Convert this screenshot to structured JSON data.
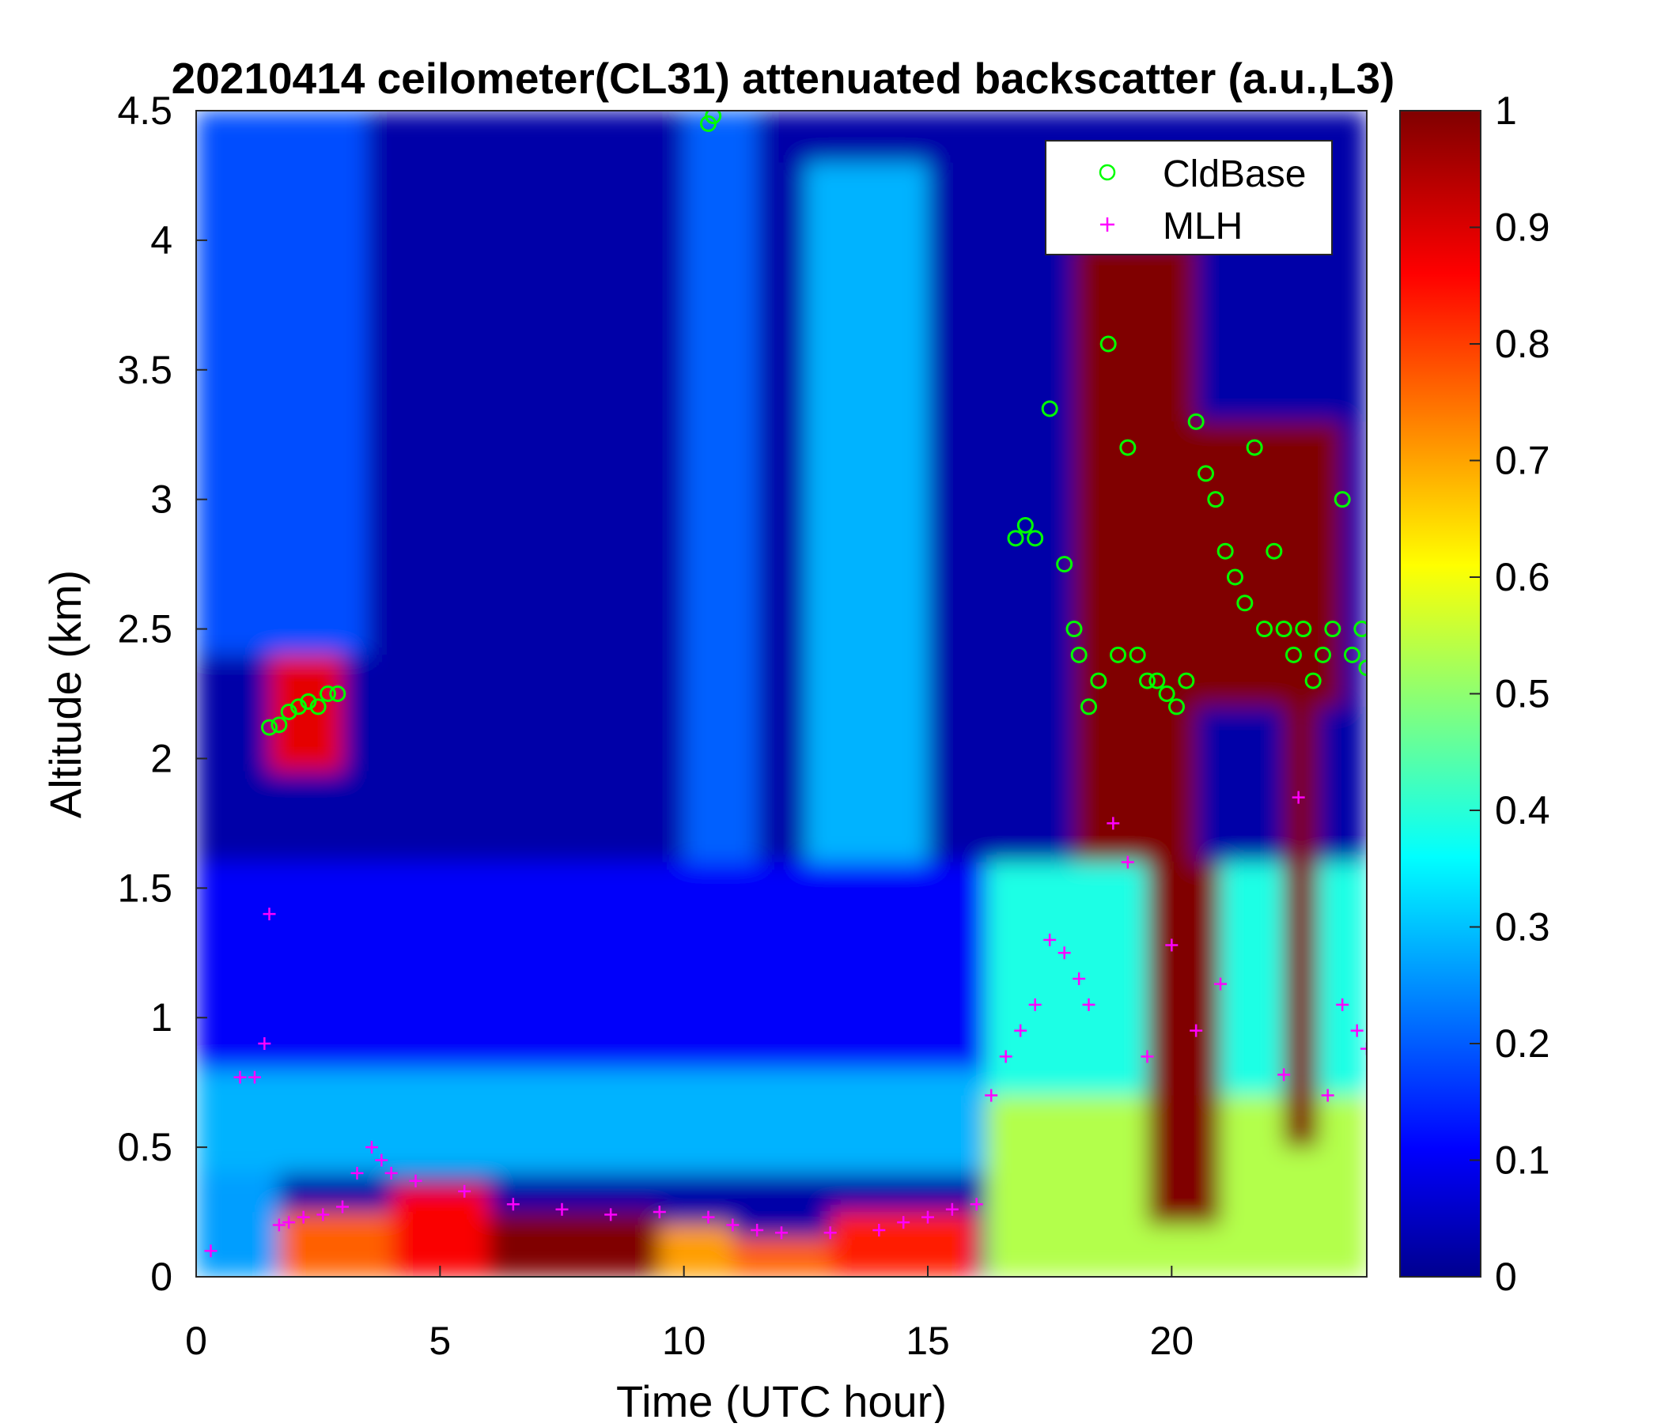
{
  "chart_data": {
    "type": "heatmap",
    "title": "20210414 ceilometer(CL31) attenuated backscatter (a.u.,L3)",
    "xlabel": "Time (UTC hour)",
    "ylabel": "Altitude (km)",
    "xlim": [
      0,
      24
    ],
    "ylim": [
      0,
      4.5
    ],
    "xticks": [
      "0",
      "5",
      "10",
      "15",
      "20"
    ],
    "yticks": [
      "0",
      "0.5",
      "1",
      "1.5",
      "2",
      "2.5",
      "3",
      "3.5",
      "4",
      "4.5"
    ],
    "colorbar": {
      "colormap": "jet",
      "range": [
        0,
        1
      ],
      "ticks": [
        "0",
        "0.1",
        "0.2",
        "0.3",
        "0.4",
        "0.5",
        "0.6",
        "0.7",
        "0.8",
        "0.9",
        "1"
      ]
    },
    "legend": {
      "placement": "top-right",
      "entries": [
        {
          "label": "CldBase",
          "marker": "circle",
          "color": "#00ff00"
        },
        {
          "label": "MLH",
          "marker": "plus",
          "color": "#ff00ff"
        }
      ]
    },
    "backscatter_regions": [
      {
        "t": [
          0,
          24
        ],
        "z": [
          0,
          4.5
        ],
        "value": 0.04
      },
      {
        "t": [
          0,
          3.5
        ],
        "z": [
          2.4,
          4.5
        ],
        "value": 0.2
      },
      {
        "t": [
          0,
          16.5
        ],
        "z": [
          0.8,
          1.6
        ],
        "value": 0.12
      },
      {
        "t": [
          0,
          16.5
        ],
        "z": [
          0.4,
          0.8
        ],
        "value": 0.3
      },
      {
        "t": [
          0,
          1.7
        ],
        "z": [
          0,
          0.4
        ],
        "value": 0.28
      },
      {
        "t": [
          1.7,
          4
        ],
        "z": [
          0,
          0.25
        ],
        "value": 0.78
      },
      {
        "t": [
          4,
          6
        ],
        "z": [
          0,
          0.35
        ],
        "value": 0.88
      },
      {
        "t": [
          6,
          9.5
        ],
        "z": [
          0,
          0.25
        ],
        "value": 1.0
      },
      {
        "t": [
          9.5,
          11
        ],
        "z": [
          0,
          0.2
        ],
        "value": 0.72
      },
      {
        "t": [
          11,
          13
        ],
        "z": [
          0,
          0.15
        ],
        "value": 0.78
      },
      {
        "t": [
          13,
          16
        ],
        "z": [
          0,
          0.25
        ],
        "value": 0.85
      },
      {
        "t": [
          16.2,
          24
        ],
        "z": [
          0,
          0.7
        ],
        "value": 0.55
      },
      {
        "t": [
          16.2,
          24
        ],
        "z": [
          0.7,
          1.6
        ],
        "value": 0.4
      },
      {
        "t": [
          18,
          20.5
        ],
        "z": [
          1.6,
          4.0
        ],
        "value": 1.0
      },
      {
        "t": [
          19.5,
          21
        ],
        "z": [
          0.2,
          1.6
        ],
        "value": 1.0
      },
      {
        "t": [
          20.5,
          23.5
        ],
        "z": [
          2.2,
          3.3
        ],
        "value": 1.0
      },
      {
        "t": [
          22.3,
          23
        ],
        "z": [
          0.5,
          2.2
        ],
        "value": 1.0
      },
      {
        "t": [
          1.5,
          3
        ],
        "z": [
          1.95,
          2.4
        ],
        "value": 0.9
      },
      {
        "t": [
          12.5,
          15
        ],
        "z": [
          1.6,
          4.3
        ],
        "value": 0.3
      },
      {
        "t": [
          10,
          11.5
        ],
        "z": [
          1.6,
          4.5
        ],
        "value": 0.22
      }
    ],
    "series": [
      {
        "name": "CldBase",
        "x": [
          1.5,
          1.7,
          1.9,
          2.1,
          2.3,
          2.5,
          2.7,
          2.9,
          10.5,
          10.6,
          16.8,
          17.0,
          17.2,
          17.5,
          17.8,
          18.0,
          18.1,
          18.3,
          18.5,
          18.7,
          18.9,
          19.1,
          19.3,
          19.5,
          19.7,
          19.9,
          20.1,
          20.3,
          20.5,
          20.7,
          20.9,
          21.1,
          21.3,
          21.5,
          21.7,
          21.9,
          22.1,
          22.3,
          22.5,
          22.7,
          22.9,
          23.1,
          23.3,
          23.5,
          23.7,
          23.9,
          24.0
        ],
        "y": [
          2.12,
          2.13,
          2.18,
          2.2,
          2.22,
          2.2,
          2.25,
          2.25,
          4.45,
          4.48,
          2.85,
          2.9,
          2.85,
          3.35,
          2.75,
          2.5,
          2.4,
          2.2,
          2.3,
          3.6,
          2.4,
          3.2,
          2.4,
          2.3,
          2.3,
          2.25,
          2.2,
          2.3,
          3.3,
          3.1,
          3.0,
          2.8,
          2.7,
          2.6,
          3.2,
          2.5,
          2.8,
          2.5,
          2.4,
          2.5,
          2.3,
          2.4,
          2.5,
          3.0,
          2.4,
          2.5,
          2.35
        ]
      },
      {
        "name": "MLH",
        "x": [
          0.3,
          0.9,
          1.2,
          1.4,
          1.5,
          1.7,
          1.9,
          2.2,
          2.6,
          3.0,
          3.3,
          3.6,
          3.8,
          4.0,
          4.5,
          5.5,
          6.5,
          7.5,
          8.5,
          9.5,
          10.5,
          11.0,
          11.5,
          12.0,
          13.0,
          14.0,
          14.5,
          15.0,
          15.5,
          16.0,
          16.3,
          16.6,
          16.9,
          17.2,
          17.5,
          17.8,
          18.1,
          18.3,
          18.8,
          19.1,
          19.5,
          20.0,
          20.5,
          21.0,
          22.3,
          22.6,
          23.2,
          23.5,
          23.8,
          24.0
        ],
        "y": [
          0.1,
          0.77,
          0.77,
          0.9,
          1.4,
          0.2,
          0.21,
          0.23,
          0.24,
          0.27,
          0.4,
          0.5,
          0.45,
          0.4,
          0.37,
          0.33,
          0.28,
          0.26,
          0.24,
          0.25,
          0.23,
          0.2,
          0.18,
          0.17,
          0.17,
          0.18,
          0.21,
          0.23,
          0.26,
          0.28,
          0.7,
          0.85,
          0.95,
          1.05,
          1.3,
          1.25,
          1.15,
          1.05,
          1.75,
          1.6,
          0.85,
          1.28,
          0.95,
          1.13,
          0.78,
          1.85,
          0.7,
          1.05,
          0.95,
          0.88
        ]
      }
    ]
  }
}
